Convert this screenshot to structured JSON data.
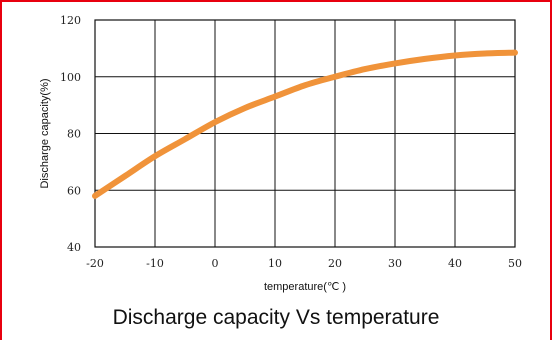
{
  "colors": {
    "frame": "#e8000f",
    "line": "#f0933a",
    "grid": "#111111"
  },
  "caption": "Discharge capacity Vs temperature",
  "chart_data": {
    "type": "line",
    "title": "",
    "xlabel": "temperature(℃ )",
    "ylabel": "Discharge capacity(%)",
    "xlim": [
      -20,
      50
    ],
    "ylim": [
      40,
      120
    ],
    "xticks": [
      -20,
      -10,
      0,
      10,
      20,
      30,
      40,
      50
    ],
    "yticks": [
      40,
      60,
      80,
      100,
      120
    ],
    "grid": true,
    "series": [
      {
        "x": [
          -20,
          -15,
          -10,
          -5,
          0,
          5,
          10,
          15,
          20,
          25,
          30,
          35,
          40,
          45,
          50
        ],
        "y": [
          58,
          65,
          72,
          78,
          84,
          89,
          93,
          97,
          100,
          102.7,
          104.7,
          106.3,
          107.5,
          108.2,
          108.5
        ]
      }
    ]
  }
}
